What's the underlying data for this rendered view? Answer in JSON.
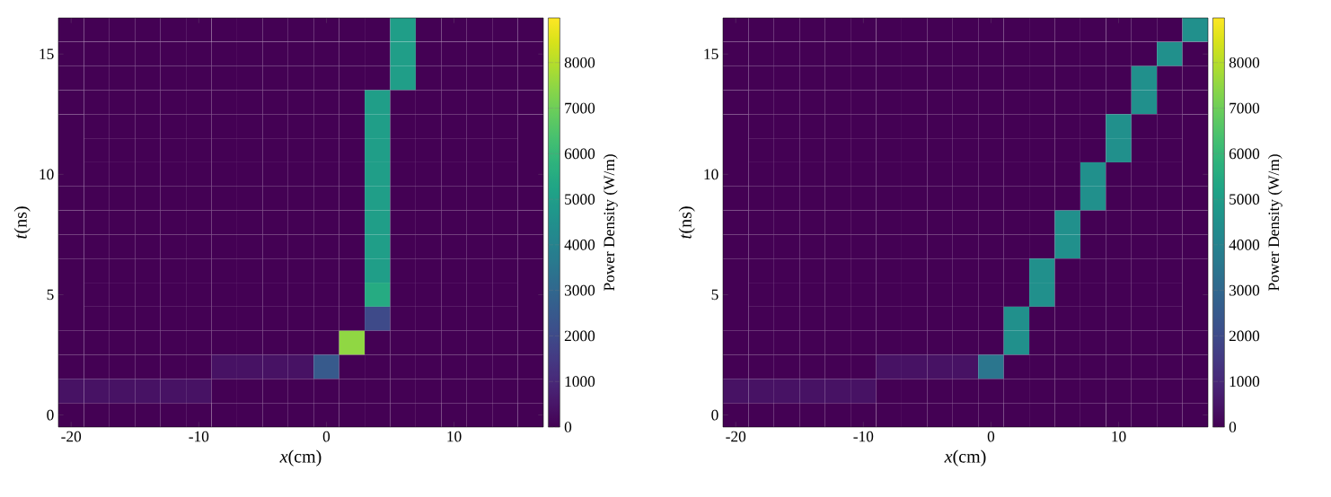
{
  "chart_data": [
    {
      "type": "heatmap",
      "xlabel": "*x*(cm)",
      "ylabel": "*t*(ns)",
      "clabel": "Power Density (W/m)",
      "categories": [
        "-20",
        null,
        null,
        null,
        null,
        "-10",
        null,
        null,
        null,
        null,
        "0",
        null,
        null,
        null,
        null,
        "10",
        null,
        null,
        null
      ],
      "y_categories": [
        null,
        "15",
        null,
        null,
        null,
        null,
        "10",
        null,
        null,
        null,
        null,
        "5",
        null,
        null,
        null,
        null,
        "0"
      ],
      "clim": [
        0,
        8980
      ],
      "cticks": [
        0,
        1000,
        2000,
        3000,
        4000,
        5000,
        6000,
        7000,
        8000
      ],
      "cells": [
        [
          0,
          0,
          0,
          0,
          0,
          0,
          0,
          0,
          0,
          0,
          0,
          0,
          0,
          5000,
          0,
          0,
          0,
          0,
          0
        ],
        [
          0,
          0,
          0,
          0,
          0,
          0,
          0,
          0,
          0,
          0,
          0,
          0,
          0,
          5000,
          0,
          0,
          0,
          0,
          0
        ],
        [
          0,
          0,
          0,
          0,
          0,
          0,
          0,
          0,
          0,
          0,
          0,
          0,
          0,
          5000,
          0,
          0,
          0,
          0,
          0
        ],
        [
          0,
          0,
          0,
          0,
          0,
          0,
          0,
          0,
          0,
          0,
          0,
          0,
          5000,
          0,
          0,
          0,
          0,
          0,
          0
        ],
        [
          0,
          0,
          0,
          0,
          0,
          0,
          0,
          0,
          0,
          0,
          0,
          0,
          5000,
          0,
          0,
          0,
          0,
          0,
          0
        ],
        [
          0,
          0,
          0,
          0,
          0,
          0,
          0,
          0,
          0,
          0,
          0,
          0,
          5000,
          0,
          0,
          0,
          0,
          0,
          0
        ],
        [
          0,
          0,
          0,
          0,
          0,
          0,
          0,
          0,
          0,
          0,
          0,
          0,
          5000,
          0,
          0,
          0,
          0,
          0,
          0
        ],
        [
          0,
          0,
          0,
          0,
          0,
          0,
          0,
          0,
          0,
          0,
          0,
          0,
          5000,
          0,
          0,
          0,
          0,
          0,
          0
        ],
        [
          0,
          0,
          0,
          0,
          0,
          0,
          0,
          0,
          0,
          0,
          0,
          0,
          5000,
          0,
          0,
          0,
          0,
          0,
          0
        ],
        [
          0,
          0,
          0,
          0,
          0,
          0,
          0,
          0,
          0,
          0,
          0,
          0,
          5000,
          0,
          0,
          0,
          0,
          0,
          0
        ],
        [
          0,
          0,
          0,
          0,
          0,
          0,
          0,
          0,
          0,
          0,
          0,
          0,
          5000,
          0,
          0,
          0,
          0,
          0,
          0
        ],
        [
          0,
          0,
          0,
          0,
          0,
          0,
          0,
          0,
          0,
          0,
          0,
          0,
          5500,
          0,
          0,
          0,
          0,
          0,
          0
        ],
        [
          0,
          0,
          0,
          0,
          0,
          0,
          0,
          0,
          0,
          0,
          0,
          0,
          2000,
          0,
          0,
          0,
          0,
          0,
          0
        ],
        [
          0,
          0,
          0,
          0,
          0,
          0,
          0,
          0,
          0,
          0,
          0,
          7500,
          0,
          0,
          0,
          0,
          0,
          0,
          0
        ],
        [
          0,
          0,
          0,
          0,
          0,
          0,
          400,
          400,
          400,
          400,
          2500,
          0,
          0,
          0,
          0,
          0,
          0,
          0,
          0
        ],
        [
          400,
          400,
          400,
          400,
          400,
          400,
          0,
          0,
          0,
          0,
          0,
          0,
          0,
          0,
          0,
          0,
          0,
          0,
          0
        ],
        [
          0,
          0,
          0,
          0,
          0,
          0,
          0,
          0,
          0,
          0,
          0,
          0,
          0,
          0,
          0,
          0,
          0,
          0,
          0
        ]
      ]
    },
    {
      "type": "heatmap",
      "xlabel": "*x*(cm)",
      "ylabel": "*t*(ns)",
      "clabel": "Power Density (W/m)",
      "categories": [
        "-20",
        null,
        null,
        null,
        null,
        "-10",
        null,
        null,
        null,
        null,
        "0",
        null,
        null,
        null,
        null,
        "10",
        null,
        null,
        null
      ],
      "y_categories": [
        null,
        "15",
        null,
        null,
        null,
        null,
        "10",
        null,
        null,
        null,
        null,
        "5",
        null,
        null,
        null,
        null,
        "0"
      ],
      "clim": [
        0,
        8980
      ],
      "cticks": [
        0,
        1000,
        2000,
        3000,
        4000,
        5000,
        6000,
        7000,
        8000
      ],
      "cells": [
        [
          0,
          0,
          0,
          0,
          0,
          0,
          0,
          0,
          0,
          0,
          0,
          0,
          0,
          0,
          0,
          0,
          0,
          0,
          4500
        ],
        [
          0,
          0,
          0,
          0,
          0,
          0,
          0,
          0,
          0,
          0,
          0,
          0,
          0,
          0,
          0,
          0,
          0,
          4500,
          0
        ],
        [
          0,
          0,
          0,
          0,
          0,
          0,
          0,
          0,
          0,
          0,
          0,
          0,
          0,
          0,
          0,
          0,
          4500,
          0,
          0
        ],
        [
          0,
          0,
          0,
          0,
          0,
          0,
          0,
          0,
          0,
          0,
          0,
          0,
          0,
          0,
          0,
          0,
          4500,
          0,
          0
        ],
        [
          0,
          0,
          0,
          0,
          0,
          0,
          0,
          0,
          0,
          0,
          0,
          0,
          0,
          0,
          0,
          4500,
          0,
          0,
          0
        ],
        [
          0,
          0,
          0,
          0,
          0,
          0,
          0,
          0,
          0,
          0,
          0,
          0,
          0,
          0,
          0,
          4500,
          0,
          0,
          0
        ],
        [
          0,
          0,
          0,
          0,
          0,
          0,
          0,
          0,
          0,
          0,
          0,
          0,
          0,
          0,
          4500,
          0,
          0,
          0,
          0
        ],
        [
          0,
          0,
          0,
          0,
          0,
          0,
          0,
          0,
          0,
          0,
          0,
          0,
          0,
          0,
          4500,
          0,
          0,
          0,
          0
        ],
        [
          0,
          0,
          0,
          0,
          0,
          0,
          0,
          0,
          0,
          0,
          0,
          0,
          0,
          4500,
          0,
          0,
          0,
          0,
          0
        ],
        [
          0,
          0,
          0,
          0,
          0,
          0,
          0,
          0,
          0,
          0,
          0,
          0,
          0,
          4500,
          0,
          0,
          0,
          0,
          0
        ],
        [
          0,
          0,
          0,
          0,
          0,
          0,
          0,
          0,
          0,
          0,
          0,
          0,
          4500,
          0,
          0,
          0,
          0,
          0,
          0
        ],
        [
          0,
          0,
          0,
          0,
          0,
          0,
          0,
          0,
          0,
          0,
          0,
          0,
          4500,
          0,
          0,
          0,
          0,
          0,
          0
        ],
        [
          0,
          0,
          0,
          0,
          0,
          0,
          0,
          0,
          0,
          0,
          0,
          4500,
          0,
          0,
          0,
          0,
          0,
          0,
          0
        ],
        [
          0,
          0,
          0,
          0,
          0,
          0,
          0,
          0,
          0,
          0,
          0,
          4500,
          0,
          0,
          0,
          0,
          0,
          0,
          0
        ],
        [
          0,
          0,
          0,
          0,
          0,
          0,
          400,
          400,
          400,
          400,
          3500,
          0,
          0,
          0,
          0,
          0,
          0,
          0,
          0
        ],
        [
          400,
          400,
          400,
          400,
          400,
          400,
          0,
          0,
          0,
          0,
          0,
          0,
          0,
          0,
          0,
          0,
          0,
          0,
          0
        ],
        [
          0,
          0,
          0,
          0,
          0,
          0,
          0,
          0,
          0,
          0,
          0,
          0,
          0,
          0,
          0,
          0,
          0,
          0,
          0
        ]
      ]
    }
  ]
}
